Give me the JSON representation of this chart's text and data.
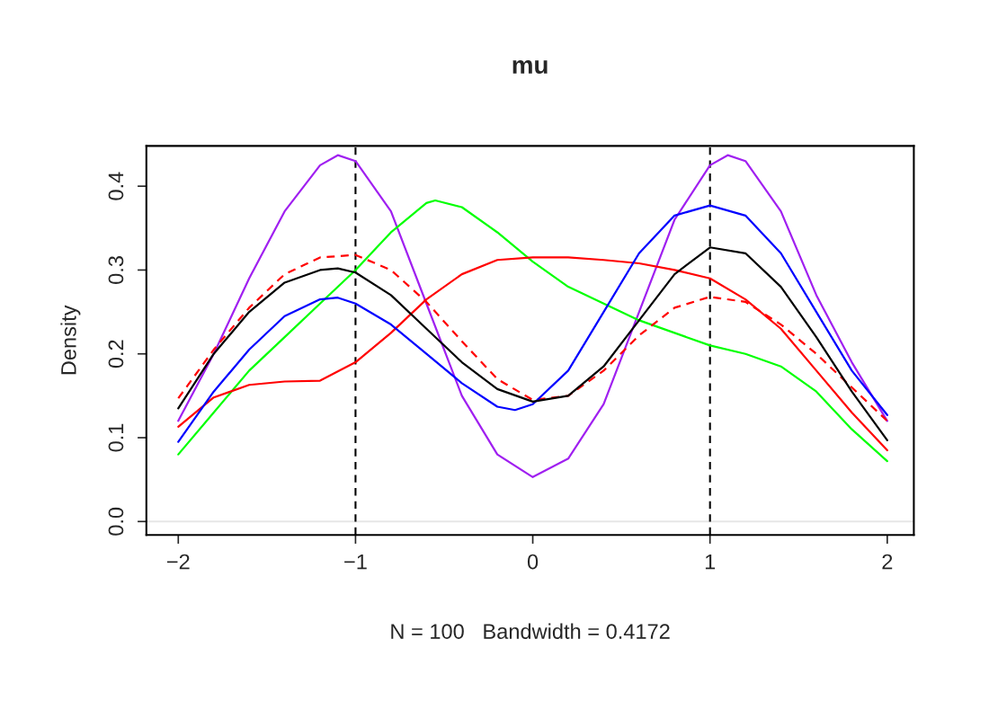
{
  "chart_data": {
    "type": "line",
    "title": "mu",
    "xlabel": "N = 100   Bandwidth = 0.4172",
    "ylabel": "Density",
    "xlim": [
      -2.18,
      2.15
    ],
    "ylim": [
      -0.016,
      0.448
    ],
    "xticks": [
      {
        "value": -2,
        "label": "−2"
      },
      {
        "value": -1,
        "label": "−1"
      },
      0,
      1,
      2
    ],
    "yticks": [
      {
        "value": 0,
        "label": "0.0"
      },
      {
        "value": 0.1,
        "label": "0.1"
      },
      {
        "value": 0.2,
        "label": "0.2"
      },
      {
        "value": 0.3,
        "label": "0.3"
      },
      {
        "value": 0.4,
        "label": "0.4"
      }
    ],
    "grid": false,
    "legend": false,
    "ref_lines": [
      {
        "axis": "y",
        "value": 0,
        "color": "#e6e6e6",
        "line_style": "solid"
      },
      {
        "axis": "x",
        "value": -1,
        "color": "#000000",
        "line_style": "dashed"
      },
      {
        "axis": "x",
        "value": 1,
        "color": "#000000",
        "line_style": "dashed"
      }
    ],
    "series": [
      {
        "color": "#a020f0",
        "x": [
          -2,
          -1.8,
          -1.6,
          -1.4,
          -1.2,
          -1.1,
          -1.0,
          -0.8,
          -0.6,
          -0.4,
          -0.2,
          0,
          0.2,
          0.4,
          0.6,
          0.8,
          1.0,
          1.1,
          1.2,
          1.4,
          1.6,
          1.8,
          2.0
        ],
        "values": [
          0.12,
          0.2,
          0.29,
          0.37,
          0.425,
          0.437,
          0.43,
          0.37,
          0.26,
          0.15,
          0.08,
          0.053,
          0.075,
          0.14,
          0.25,
          0.36,
          0.425,
          0.437,
          0.43,
          0.37,
          0.27,
          0.19,
          0.12
        ]
      },
      {
        "color": "#00ff00",
        "x": [
          -2,
          -1.8,
          -1.6,
          -1.4,
          -1.2,
          -1.0,
          -0.8,
          -0.6,
          -0.55,
          -0.4,
          -0.2,
          0,
          0.2,
          0.4,
          0.6,
          0.8,
          1.0,
          1.2,
          1.4,
          1.6,
          1.8,
          2.0
        ],
        "values": [
          0.08,
          0.13,
          0.18,
          0.22,
          0.26,
          0.3,
          0.345,
          0.38,
          0.383,
          0.375,
          0.345,
          0.31,
          0.28,
          0.26,
          0.24,
          0.225,
          0.21,
          0.2,
          0.185,
          0.155,
          0.11,
          0.072
        ]
      },
      {
        "color": "#ff0000",
        "x": [
          -2,
          -1.8,
          -1.6,
          -1.4,
          -1.2,
          -1.0,
          -0.8,
          -0.6,
          -0.4,
          -0.2,
          0,
          0.2,
          0.4,
          0.6,
          0.8,
          1.0,
          1.2,
          1.4,
          1.6,
          1.8,
          2.0
        ],
        "values": [
          0.113,
          0.148,
          0.163,
          0.167,
          0.168,
          0.19,
          0.225,
          0.265,
          0.295,
          0.312,
          0.315,
          0.315,
          0.312,
          0.308,
          0.3,
          0.29,
          0.265,
          0.23,
          0.18,
          0.13,
          0.085
        ]
      },
      {
        "color": "#ff0000",
        "line_style": "dashed",
        "x": [
          -2,
          -1.8,
          -1.6,
          -1.4,
          -1.2,
          -1.0,
          -0.8,
          -0.6,
          -0.4,
          -0.2,
          0,
          0.2,
          0.4,
          0.6,
          0.8,
          1.0,
          1.2,
          1.4,
          1.6,
          1.8,
          2.0
        ],
        "values": [
          0.147,
          0.205,
          0.255,
          0.295,
          0.315,
          0.318,
          0.3,
          0.262,
          0.215,
          0.17,
          0.145,
          0.15,
          0.18,
          0.222,
          0.255,
          0.268,
          0.262,
          0.235,
          0.2,
          0.16,
          0.12
        ]
      },
      {
        "color": "#0000ff",
        "x": [
          -2,
          -1.8,
          -1.6,
          -1.4,
          -1.2,
          -1.1,
          -1.0,
          -0.8,
          -0.6,
          -0.4,
          -0.2,
          -0.1,
          0,
          0.2,
          0.4,
          0.6,
          0.8,
          1.0,
          1.2,
          1.4,
          1.6,
          1.8,
          2.0
        ],
        "values": [
          0.095,
          0.155,
          0.205,
          0.245,
          0.265,
          0.267,
          0.26,
          0.235,
          0.2,
          0.165,
          0.137,
          0.133,
          0.14,
          0.18,
          0.25,
          0.32,
          0.365,
          0.377,
          0.365,
          0.32,
          0.25,
          0.18,
          0.127
        ]
      },
      {
        "color": "#000000",
        "x": [
          -2,
          -1.8,
          -1.6,
          -1.4,
          -1.2,
          -1.1,
          -1.0,
          -0.8,
          -0.6,
          -0.4,
          -0.2,
          0,
          0.2,
          0.4,
          0.6,
          0.8,
          1.0,
          1.2,
          1.4,
          1.6,
          1.8,
          2.0
        ],
        "values": [
          0.135,
          0.2,
          0.25,
          0.285,
          0.3,
          0.302,
          0.297,
          0.27,
          0.23,
          0.19,
          0.158,
          0.143,
          0.15,
          0.185,
          0.24,
          0.295,
          0.327,
          0.32,
          0.28,
          0.22,
          0.155,
          0.097
        ]
      }
    ]
  }
}
